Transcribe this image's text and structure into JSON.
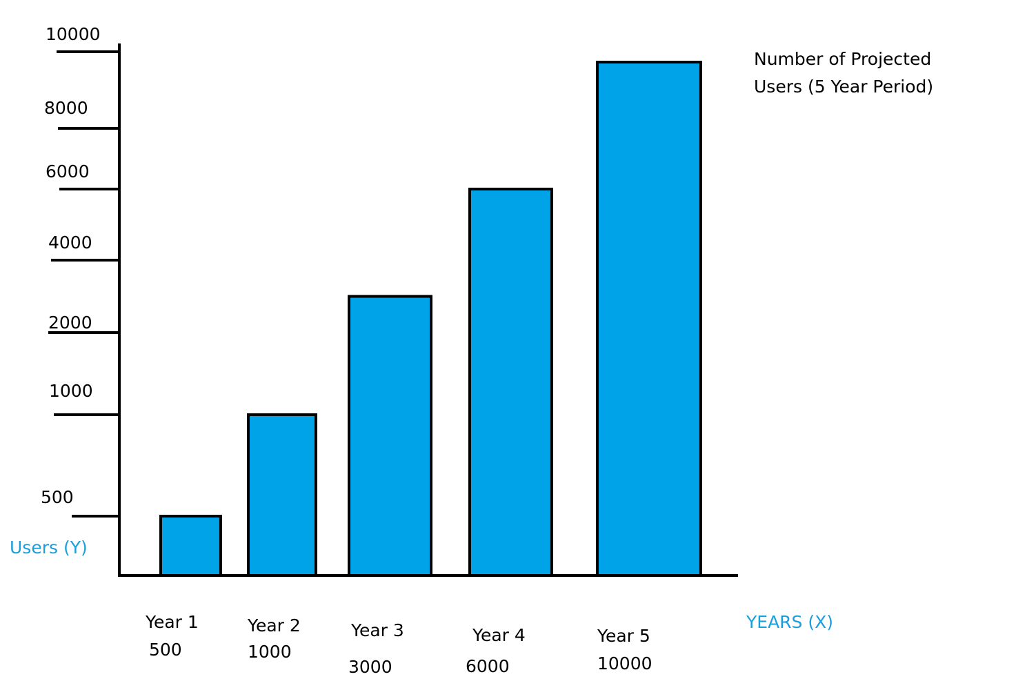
{
  "colors": {
    "bar_fill": "#00a2e8",
    "bar_stroke": "#000000",
    "axis": "#000000",
    "axis_title": "#1a9fdb"
  },
  "chart_data": {
    "type": "bar",
    "title_lines": [
      "Number of Projected",
      "Users (5 Year Period)"
    ],
    "xlabel": "YEARS (X)",
    "ylabel": "Users (Y)",
    "categories": [
      "Year 1",
      "Year 2",
      "Year 3",
      "Year 4",
      "Year 5"
    ],
    "values": [
      500,
      1000,
      3000,
      6000,
      10000
    ],
    "value_labels": [
      "500",
      "1000",
      "3000",
      "6000",
      "10000"
    ],
    "y_ticks": [
      500,
      1000,
      2000,
      4000,
      6000,
      8000,
      10000
    ],
    "y_tick_labels": [
      "500",
      "1000",
      "2000",
      "4000",
      "6000",
      "8000",
      "10000"
    ],
    "ylim": [
      0,
      10000
    ],
    "y_scale": "non-uniform (hand-drawn)",
    "grid": false,
    "legend": "none"
  }
}
